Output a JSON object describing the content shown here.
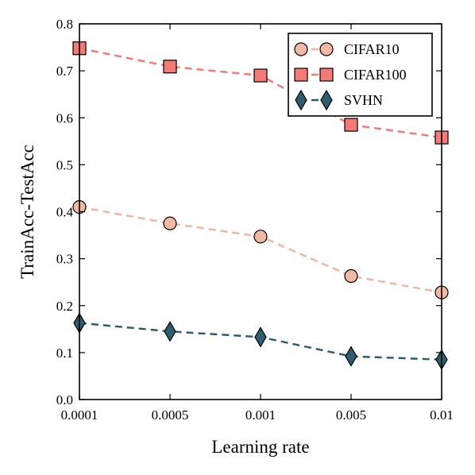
{
  "chart_data": {
    "type": "line",
    "categories": [
      "0.0001",
      "0.0005",
      "0.001",
      "0.005",
      "0.01"
    ],
    "xlabel": "Learning rate",
    "ylabel": "TrainAcc-TestAcc",
    "ylim": [
      0.0,
      0.8
    ],
    "yticks": [
      "0.0",
      "0.1",
      "0.2",
      "0.3",
      "0.4",
      "0.5",
      "0.6",
      "0.7",
      "0.8"
    ],
    "grid": false,
    "legend_position": "top-right",
    "series": [
      {
        "name": "CIFAR10",
        "values": [
          0.41,
          0.375,
          0.347,
          0.263,
          0.228
        ],
        "color": "#f4b9a4",
        "line_color": "#f2b5a1",
        "marker": "circle"
      },
      {
        "name": "CIFAR100",
        "values": [
          0.748,
          0.709,
          0.69,
          0.585,
          0.558
        ],
        "color": "#f47a78",
        "line_color": "#f27a78",
        "marker": "square"
      },
      {
        "name": "SVHN",
        "values": [
          0.163,
          0.145,
          0.133,
          0.092,
          0.085
        ],
        "color": "#2e5e6e",
        "line_color": "#2e5e6e",
        "marker": "diamond"
      }
    ]
  }
}
